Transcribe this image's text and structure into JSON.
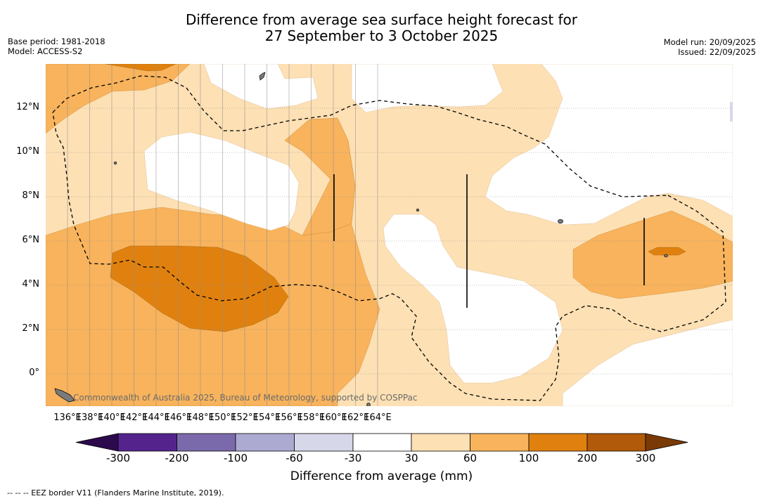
{
  "title": {
    "line1": "Difference from average sea surface height forecast for",
    "line2": "27 September to 3 October 2025"
  },
  "meta_left": {
    "base_period": "Base period: 1981-2018",
    "model": "Model: ACCESS-S2"
  },
  "meta_right": {
    "model_run": "Model run: 20/09/2025",
    "issued": "Issued: 22/09/2025"
  },
  "axes": {
    "lon_labels": [
      "136°E",
      "138°E",
      "140°E",
      "142°E",
      "144°E",
      "146°E",
      "148°E",
      "150°E",
      "152°E",
      "154°E",
      "156°E",
      "158°E",
      "160°E",
      "162°E",
      "164°E"
    ],
    "lat_labels": [
      "12°N",
      "10°N",
      "8°N",
      "6°N",
      "4°N",
      "2°N",
      "0°"
    ]
  },
  "colorbar": {
    "title": "Difference from average (mm)",
    "ticks": [
      "-300",
      "-200",
      "-100",
      "-60",
      "-30",
      "30",
      "60",
      "100",
      "200",
      "300"
    ],
    "colors": [
      "#2d0a4e",
      "#54248c",
      "#7b6aab",
      "#adaad2",
      "#d7d7ea",
      "#ffffff",
      "#fde0b4",
      "#f8b35c",
      "#e0810f",
      "#b05a0a",
      "#7a3a05"
    ]
  },
  "map_colors": {
    "light": "#fde0b4",
    "mid": "#f8b35c",
    "dark": "#e0810f",
    "ocean": "#ffffff",
    "land": "#7a7a7a"
  },
  "copyright": "Commonwealth of Australia 2025, Bureau of Meteorology, supported by COSPPac",
  "footnote": "--  --  -- EEZ border V11 (Flanders Marine Institute, 2019)."
}
